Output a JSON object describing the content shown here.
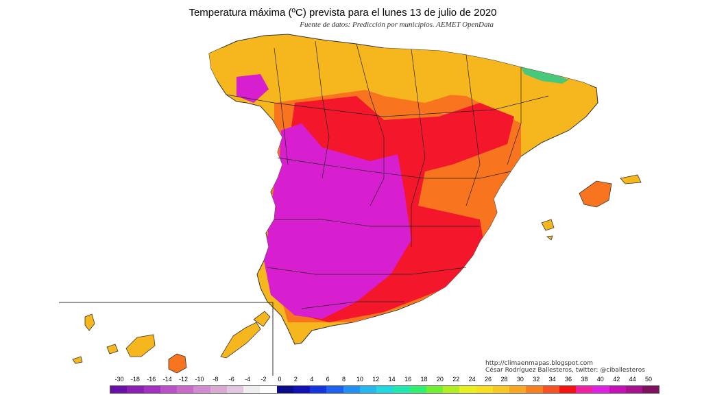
{
  "title": "Temperatura máxima (ºC) prevista para el lunes 13 de julio de 2020",
  "subtitle": "Fuente de datos: Predicción por municipios. AEMET OpenData",
  "credits": {
    "url": "http://climaenmapas.blogspot.com",
    "author": "César Rodríguez Ballesteros, twitter: @ciballesteros"
  },
  "legend": {
    "labels": [
      "-30",
      "-18",
      "-16",
      "-14",
      "-12",
      "-10",
      "-8",
      "-6",
      "-4",
      "-2",
      "0",
      "2",
      "4",
      "6",
      "8",
      "10",
      "12",
      "14",
      "16",
      "18",
      "20",
      "22",
      "24",
      "26",
      "28",
      "30",
      "32",
      "34",
      "36",
      "38",
      "40",
      "42",
      "44",
      "50"
    ],
    "colors": [
      "#6a0fa8",
      "#8a1fb8",
      "#a52ec3",
      "#b94fc9",
      "#c96ac9",
      "#d28bd0",
      "#d9a9d3",
      "#e3c6e0",
      "#eeeeee",
      "#ffffff",
      "#0a0a8a",
      "#1010b8",
      "#1535e0",
      "#1e60f0",
      "#2090f5",
      "#25b8f0",
      "#20d8e0",
      "#20e8b0",
      "#30f070",
      "#70f030",
      "#b0f020",
      "#e8f020",
      "#f8e020",
      "#f8c820",
      "#f8a820",
      "#f88020",
      "#f85020",
      "#f81010",
      "#f020a0",
      "#e020e0",
      "#c810b8",
      "#a81090",
      "#801060"
    ]
  },
  "colors": {
    "hot_mag": "#d81fcf",
    "hot_red": "#f4162b",
    "warm_org": "#f8741f",
    "warm_yel": "#f6b61d",
    "cool_grn": "#48c87a"
  }
}
